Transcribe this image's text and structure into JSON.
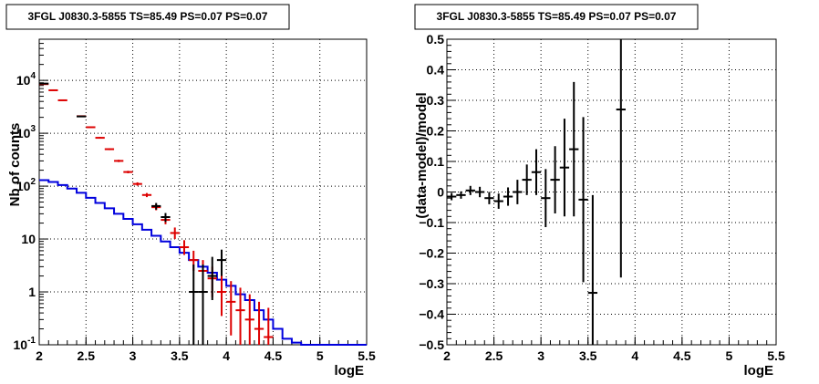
{
  "chart_data": [
    {
      "type": "line",
      "title": "3FGL J0830.3-5855 TS=85.49 PS=0.07 PS=0.07",
      "xlabel": "logE",
      "ylabel": "Nb of counts",
      "xlim": [
        2,
        5.5
      ],
      "ylim": [
        0.1,
        60000
      ],
      "y_scale": "log",
      "grid": true,
      "x_ticks": [
        "2",
        "2.5",
        "3",
        "3.5",
        "4",
        "4.5",
        "5",
        "5.5"
      ],
      "y_ticks": [
        {
          "v": 0.1,
          "label": "10",
          "sup": "-1"
        },
        {
          "v": 1,
          "label": "1",
          "sup": ""
        },
        {
          "v": 10,
          "label": "10",
          "sup": ""
        },
        {
          "v": 100,
          "label": "10",
          "sup": "2"
        },
        {
          "v": 1000,
          "label": "10",
          "sup": "3"
        },
        {
          "v": 10000,
          "label": "10",
          "sup": "4"
        }
      ],
      "bin_edges": [
        2.0,
        2.1,
        2.2,
        2.3,
        2.4,
        2.5,
        2.6,
        2.7,
        2.8,
        2.9,
        3.0,
        3.1,
        3.2,
        3.3,
        3.4,
        3.5,
        3.6,
        3.7,
        3.8,
        3.9,
        4.0,
        4.1,
        4.2,
        4.3,
        4.4,
        4.5,
        4.6,
        4.7,
        4.8,
        4.9,
        5.0,
        5.1,
        5.2,
        5.3,
        5.4,
        5.5
      ],
      "series": [
        {
          "color": "#0000dd",
          "kind": "step",
          "values": [
            130,
            120,
            105,
            90,
            75,
            60,
            48,
            38,
            30,
            24,
            19,
            15,
            11.5,
            9,
            7,
            5.5,
            4,
            3,
            2.3,
            1.7,
            1.3,
            0.9,
            0.7,
            0.45,
            0.3,
            0.2,
            0.13,
            0.11,
            0.1,
            0.1,
            0.1,
            0.1,
            0.1,
            0.1,
            0.1
          ]
        },
        {
          "color": "#dd0000",
          "kind": "errorbar",
          "points": [
            {
              "x": 2.05,
              "y": 8500,
              "lo": 8300,
              "hi": 8700
            },
            {
              "x": 2.15,
              "y": 6500,
              "lo": 6350,
              "hi": 6650
            },
            {
              "x": 2.25,
              "y": 4200,
              "lo": 4100,
              "hi": 4300
            },
            {
              "x": 2.45,
              "y": 2100,
              "lo": 2050,
              "hi": 2150
            },
            {
              "x": 2.55,
              "y": 1300,
              "lo": 1260,
              "hi": 1340
            },
            {
              "x": 2.65,
              "y": 820,
              "lo": 790,
              "hi": 850
            },
            {
              "x": 2.75,
              "y": 500,
              "lo": 480,
              "hi": 520
            },
            {
              "x": 2.85,
              "y": 300,
              "lo": 285,
              "hi": 315
            },
            {
              "x": 2.95,
              "y": 185,
              "lo": 175,
              "hi": 195
            },
            {
              "x": 3.05,
              "y": 110,
              "lo": 102,
              "hi": 118
            },
            {
              "x": 3.15,
              "y": 68,
              "lo": 62,
              "hi": 74
            },
            {
              "x": 3.25,
              "y": 40,
              "lo": 35,
              "hi": 45
            },
            {
              "x": 3.35,
              "y": 23,
              "lo": 19,
              "hi": 27
            },
            {
              "x": 3.45,
              "y": 13,
              "lo": 10,
              "hi": 16.5
            },
            {
              "x": 3.55,
              "y": 7,
              "lo": 5,
              "hi": 9.5
            },
            {
              "x": 3.65,
              "y": 4,
              "lo": 2.5,
              "hi": 6
            },
            {
              "x": 3.75,
              "y": 2.5,
              "lo": 1.3,
              "hi": 4
            },
            {
              "x": 3.85,
              "y": 1.8,
              "lo": 0.8,
              "hi": 3
            },
            {
              "x": 3.95,
              "y": 1.0,
              "lo": 0.35,
              "hi": 2.2
            },
            {
              "x": 4.05,
              "y": 0.65,
              "lo": 0.15,
              "hi": 1.6
            },
            {
              "x": 4.15,
              "y": 0.45,
              "lo": 0.1,
              "hi": 1.2
            },
            {
              "x": 4.25,
              "y": 0.3,
              "lo": 0.1,
              "hi": 0.9
            },
            {
              "x": 4.35,
              "y": 0.2,
              "lo": 0.1,
              "hi": 0.65
            },
            {
              "x": 4.45,
              "y": 0.14,
              "lo": 0.1,
              "hi": 0.5
            }
          ]
        },
        {
          "color": "#000000",
          "kind": "errorbar",
          "points": [
            {
              "x": 2.05,
              "y": 8700,
              "lo": 8500,
              "hi": 8900
            },
            {
              "x": 2.45,
              "y": 2080,
              "lo": 2030,
              "hi": 2130
            },
            {
              "x": 3.25,
              "y": 42,
              "lo": 36,
              "hi": 48
            },
            {
              "x": 3.35,
              "y": 26,
              "lo": 21,
              "hi": 31
            },
            {
              "x": 3.65,
              "y": 1,
              "lo": 0.1,
              "hi": 3.3
            },
            {
              "x": 3.75,
              "y": 1,
              "lo": 0.1,
              "hi": 3.3
            },
            {
              "x": 3.85,
              "y": 2,
              "lo": 0.7,
              "hi": 4.6
            },
            {
              "x": 3.95,
              "y": 4,
              "lo": 2,
              "hi": 6.3
            }
          ]
        }
      ]
    },
    {
      "type": "scatter",
      "title": "3FGL J0830.3-5855 TS=85.49 PS=0.07 PS=0.07",
      "xlabel": "logE",
      "ylabel": "(data-model)/model",
      "xlim": [
        2,
        5.5
      ],
      "ylim": [
        -0.5,
        0.5
      ],
      "grid": true,
      "x_ticks": [
        "2",
        "2.5",
        "3",
        "3.5",
        "4",
        "4.5",
        "5",
        "5.5"
      ],
      "y_ticks": [
        "−0.5",
        "−0.4",
        "−0.3",
        "−0.2",
        "−0.1",
        "0",
        "0.1",
        "0.2",
        "0.3",
        "0.4",
        "0.5"
      ],
      "series": [
        {
          "color": "#000000",
          "points": [
            {
              "x": 2.05,
              "y": -0.015,
              "err": 0.012
            },
            {
              "x": 2.15,
              "y": -0.01,
              "err": 0.012
            },
            {
              "x": 2.25,
              "y": 0.005,
              "err": 0.015
            },
            {
              "x": 2.35,
              "y": 0.0,
              "err": 0.017
            },
            {
              "x": 2.45,
              "y": -0.02,
              "err": 0.02
            },
            {
              "x": 2.55,
              "y": -0.03,
              "err": 0.025
            },
            {
              "x": 2.65,
              "y": -0.015,
              "err": 0.03
            },
            {
              "x": 2.75,
              "y": 0.0,
              "err": 0.04
            },
            {
              "x": 2.85,
              "y": 0.04,
              "err": 0.05
            },
            {
              "x": 2.95,
              "y": 0.065,
              "err": 0.075
            },
            {
              "x": 3.05,
              "y": -0.02,
              "err": 0.095
            },
            {
              "x": 3.15,
              "y": 0.04,
              "err": 0.11
            },
            {
              "x": 3.25,
              "y": 0.08,
              "err": 0.16
            },
            {
              "x": 3.35,
              "y": 0.14,
              "err": 0.22
            },
            {
              "x": 3.45,
              "y": -0.025,
              "err": 0.27
            },
            {
              "x": 3.55,
              "y": -0.33,
              "err": 0.32
            },
            {
              "x": 3.85,
              "y": 0.27,
              "err": 0.55
            }
          ]
        }
      ]
    }
  ]
}
